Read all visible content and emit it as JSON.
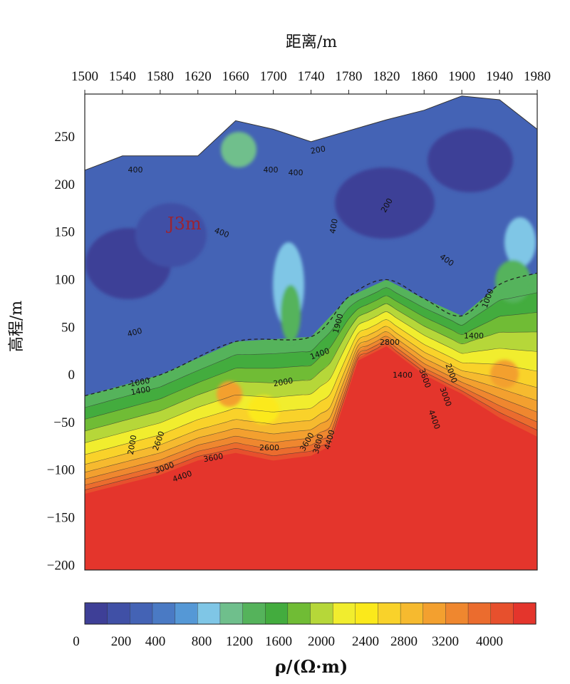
{
  "chart_data": {
    "type": "heatmap",
    "title": "",
    "xlabel": "距离/m",
    "ylabel": "高程/m",
    "x_ticks": [
      1500,
      1540,
      1580,
      1620,
      1660,
      1700,
      1740,
      1780,
      1820,
      1860,
      1900,
      1940,
      1980
    ],
    "y_ticks": [
      250,
      200,
      150,
      100,
      50,
      0,
      -50,
      -100,
      -150,
      -200
    ],
    "xlim": [
      1500,
      1980
    ],
    "ylim": [
      -205,
      295
    ],
    "x_axis_position": "top",
    "grid": false,
    "surface_profile": {
      "x": [
        1500,
        1540,
        1620,
        1660,
        1700,
        1740,
        1820,
        1860,
        1900,
        1940,
        1980
      ],
      "elevation": [
        215,
        230,
        230,
        267,
        258,
        245,
        268,
        278,
        293,
        289,
        258
      ]
    },
    "boundary_1000_dashed": {
      "x": [
        1500,
        1580,
        1660,
        1740,
        1780,
        1820,
        1860,
        1900,
        1940,
        1980
      ],
      "elevation": [
        -22,
        0,
        35,
        40,
        82,
        100,
        80,
        62,
        95,
        107
      ]
    },
    "high_resistivity_top": {
      "x": [
        1500,
        1580,
        1620,
        1660,
        1700,
        1740,
        1760,
        1790,
        1820,
        1860,
        1900,
        1940,
        1980
      ],
      "elevation": [
        -125,
        -105,
        -90,
        -82,
        -90,
        -85,
        -75,
        15,
        30,
        0,
        -20,
        -45,
        -65
      ]
    },
    "contour_labels": [
      "400",
      "200",
      "400",
      "400",
      "200",
      "400",
      "400",
      "400",
      "400",
      "1000",
      "1000",
      "1400",
      "1400",
      "1400",
      "1900",
      "1400",
      "2000",
      "2000",
      "2600",
      "3000",
      "3600",
      "4400",
      "2600",
      "3600",
      "3800",
      "4400",
      "2800",
      "3600",
      "3000",
      "2000",
      "4400"
    ],
    "unit_label": "J3m",
    "colorbar": {
      "label": "ρ/(Ω·m)",
      "tick_labels": [
        "0",
        "200",
        "400",
        "800",
        "1200",
        "1600",
        "2000",
        "2400",
        "2800",
        "3200",
        "4000"
      ],
      "colors": [
        "#3e3f97",
        "#4050a6",
        "#4463b5",
        "#4a7ac4",
        "#5598d6",
        "#7fc6e6",
        "#6fbf8c",
        "#55b35b",
        "#43ac3e",
        "#70bc35",
        "#b6d739",
        "#f1ed2e",
        "#fbe91b",
        "#f9d22a",
        "#f6ba2f",
        "#f3a02f",
        "#ef872f",
        "#eb6c2e",
        "#e7502d",
        "#e4352c"
      ]
    }
  }
}
